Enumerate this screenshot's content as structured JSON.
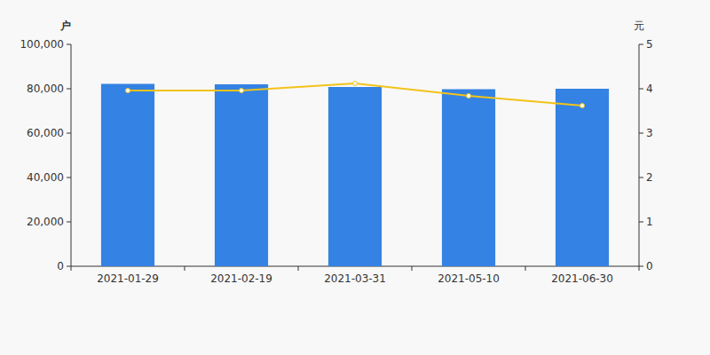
{
  "chart_data": {
    "type": "bar",
    "y_label": "户",
    "y2_label": "元",
    "categories": [
      "2021-01-29",
      "2021-02-19",
      "2021-03-31",
      "2021-05-10",
      "2021-06-30"
    ],
    "series": [
      {
        "type": "bar",
        "color": "#3482e3",
        "values": [
          82200,
          82000,
          80800,
          79800,
          80000
        ]
      },
      {
        "type": "line",
        "color": "#f2c31a",
        "axis": "y2",
        "marker": "circle",
        "values": [
          3.96,
          3.96,
          4.12,
          3.84,
          3.62
        ]
      }
    ],
    "ylim": [
      0,
      100000
    ],
    "yticks": [
      0,
      {
        "value": 20000,
        "label": "20,000"
      },
      {
        "value": 40000,
        "label": "40,000"
      },
      {
        "value": 60000,
        "label": "60,000"
      },
      {
        "value": 80000,
        "label": "80,000"
      },
      {
        "value": 100000,
        "label": "100,000"
      }
    ],
    "y2lim": [
      0,
      5
    ],
    "y2ticks": [
      0,
      1,
      2,
      3,
      4,
      5
    ],
    "grid": false
  }
}
